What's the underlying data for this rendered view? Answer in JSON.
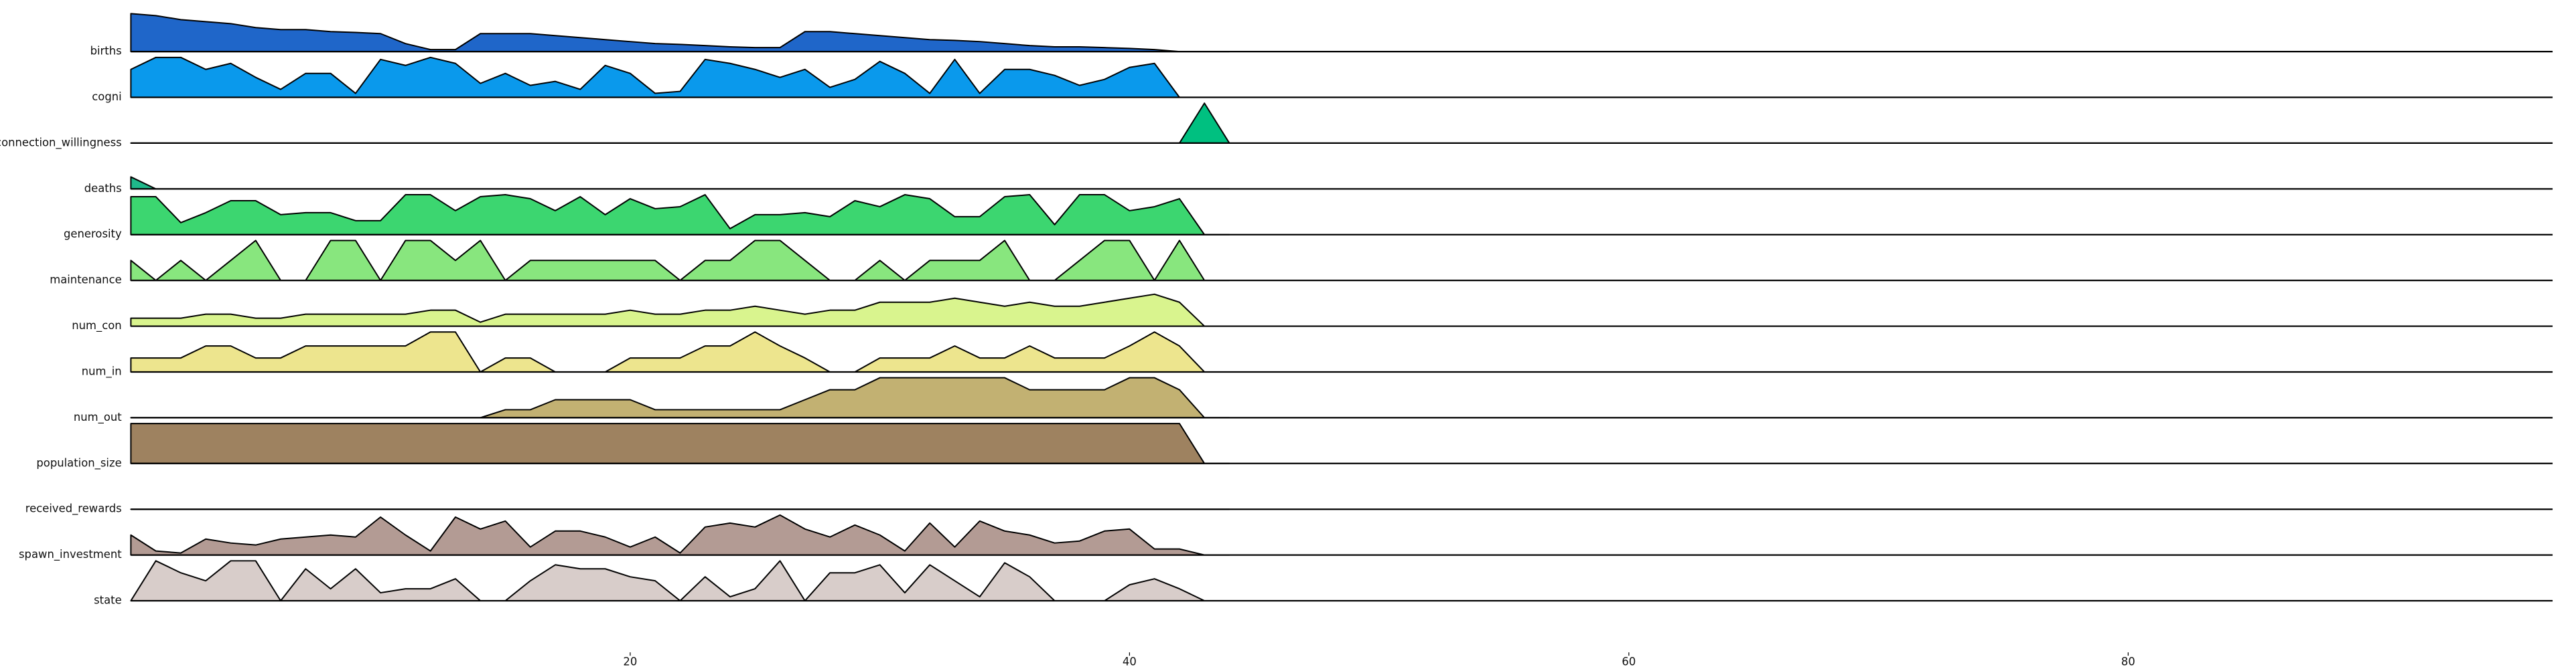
{
  "chart_data": {
    "type": "ridgeline",
    "x": [
      0,
      1,
      2,
      3,
      4,
      5,
      6,
      7,
      8,
      9,
      10,
      11,
      12,
      13,
      14,
      15,
      16,
      17,
      18,
      19,
      20,
      21,
      22,
      23,
      24,
      25,
      26,
      27,
      28,
      29,
      30,
      31,
      32,
      33,
      34,
      35,
      36,
      37,
      38,
      39,
      40,
      41,
      42,
      43,
      44
    ],
    "xlim": [
      0,
      97
    ],
    "xticks": [
      20,
      40,
      60,
      80
    ],
    "ylim": [
      0,
      1
    ],
    "series": [
      {
        "name": "births",
        "color": "#1f66c9",
        "values": [
          0.95,
          0.9,
          0.8,
          0.75,
          0.7,
          0.6,
          0.55,
          0.55,
          0.5,
          0.48,
          0.45,
          0.2,
          0.05,
          0.05,
          0.45,
          0.45,
          0.45,
          0.4,
          0.35,
          0.3,
          0.25,
          0.2,
          0.18,
          0.15,
          0.12,
          0.1,
          0.1,
          0.5,
          0.5,
          0.45,
          0.4,
          0.35,
          0.3,
          0.28,
          0.25,
          0.2,
          0.15,
          0.12,
          0.12,
          0.1,
          0.08,
          0.05,
          0,
          0,
          0
        ]
      },
      {
        "name": "cogni",
        "color": "#0a99ec",
        "values": [
          0.7,
          1,
          1,
          0.7,
          0.85,
          0.5,
          0.2,
          0.6,
          0.6,
          0.1,
          0.95,
          0.8,
          1,
          0.85,
          0.35,
          0.6,
          0.3,
          0.4,
          0.2,
          0.8,
          0.6,
          0.1,
          0.15,
          0.95,
          0.85,
          0.7,
          0.5,
          0.7,
          0.25,
          0.45,
          0.9,
          0.6,
          0.1,
          0.95,
          0.1,
          0.7,
          0.7,
          0.55,
          0.3,
          0.45,
          0.75,
          0.85,
          0,
          0,
          0
        ]
      },
      {
        "name": "connection_willingness",
        "color": "#00c080",
        "values": [
          0,
          0,
          0,
          0,
          0,
          0,
          0,
          0,
          0,
          0,
          0,
          0,
          0,
          0,
          0,
          0,
          0,
          0,
          0,
          0,
          0,
          0,
          0,
          0,
          0,
          0,
          0,
          0,
          0,
          0,
          0,
          0,
          0,
          0,
          0,
          0,
          0,
          0,
          0,
          0,
          0,
          0,
          0,
          1,
          0
        ]
      },
      {
        "name": "deaths",
        "color": "#1fb88a",
        "values": [
          0.3,
          0,
          0,
          0,
          0,
          0,
          0,
          0,
          0,
          0,
          0,
          0,
          0,
          0,
          0,
          0,
          0,
          0,
          0,
          0,
          0,
          0,
          0,
          0,
          0,
          0,
          0,
          0,
          0,
          0,
          0,
          0,
          0,
          0,
          0,
          0,
          0,
          0,
          0,
          0,
          0,
          0,
          0,
          0,
          0
        ]
      },
      {
        "name": "generosity",
        "color": "#3cd670",
        "values": [
          0.95,
          0.95,
          0.3,
          0.55,
          0.85,
          0.85,
          0.5,
          0.55,
          0.55,
          0.35,
          0.35,
          1,
          1,
          0.6,
          0.95,
          1,
          0.9,
          0.6,
          0.95,
          0.5,
          0.9,
          0.65,
          0.7,
          1,
          0.15,
          0.5,
          0.5,
          0.55,
          0.45,
          0.85,
          0.7,
          1,
          0.9,
          0.45,
          0.45,
          0.95,
          1,
          0.25,
          1,
          1,
          0.6,
          0.7,
          0.9,
          0,
          0
        ]
      },
      {
        "name": "maintenance",
        "color": "#88e67e",
        "values": [
          0.5,
          0,
          0.5,
          0,
          0.5,
          1,
          0,
          0,
          1,
          1,
          0,
          1,
          1,
          0.5,
          1,
          0,
          0.5,
          0.5,
          0.5,
          0.5,
          0.5,
          0.5,
          0,
          0.5,
          0.5,
          1,
          1,
          0.5,
          0,
          0,
          0.5,
          0,
          0.5,
          0.5,
          0.5,
          1,
          0,
          0,
          0.5,
          1,
          1,
          0,
          1,
          0,
          0
        ]
      },
      {
        "name": "num_con",
        "color": "#d9f48e",
        "values": [
          0.2,
          0.2,
          0.2,
          0.3,
          0.3,
          0.2,
          0.2,
          0.3,
          0.3,
          0.3,
          0.3,
          0.3,
          0.4,
          0.4,
          0.1,
          0.3,
          0.3,
          0.3,
          0.3,
          0.3,
          0.4,
          0.3,
          0.3,
          0.4,
          0.4,
          0.5,
          0.4,
          0.3,
          0.4,
          0.4,
          0.6,
          0.6,
          0.6,
          0.7,
          0.6,
          0.5,
          0.6,
          0.5,
          0.5,
          0.6,
          0.7,
          0.8,
          0.6,
          0,
          0
        ]
      },
      {
        "name": "num_in",
        "color": "#ede58e",
        "values": [
          0.35,
          0.35,
          0.35,
          0.65,
          0.65,
          0.35,
          0.35,
          0.65,
          0.65,
          0.65,
          0.65,
          0.65,
          1,
          1,
          0,
          0.35,
          0.35,
          0,
          0,
          0,
          0.35,
          0.35,
          0.35,
          0.65,
          0.65,
          1,
          0.65,
          0.35,
          0,
          0,
          0.35,
          0.35,
          0.35,
          0.65,
          0.35,
          0.35,
          0.65,
          0.35,
          0.35,
          0.35,
          0.65,
          1,
          0.65,
          0,
          0
        ]
      },
      {
        "name": "num_out",
        "color": "#c2b172",
        "values": [
          0,
          0,
          0,
          0,
          0,
          0,
          0,
          0,
          0,
          0,
          0,
          0,
          0,
          0,
          0,
          0.2,
          0.2,
          0.45,
          0.45,
          0.45,
          0.45,
          0.2,
          0.2,
          0.2,
          0.2,
          0.2,
          0.2,
          0.45,
          0.7,
          0.7,
          1,
          1,
          1,
          1,
          1,
          1,
          0.7,
          0.7,
          0.7,
          0.7,
          1,
          1,
          0.7,
          0,
          0
        ]
      },
      {
        "name": "population_size",
        "color": "#9e8260",
        "values": [
          1,
          1,
          1,
          1,
          1,
          1,
          1,
          1,
          1,
          1,
          1,
          1,
          1,
          1,
          1,
          1,
          1,
          1,
          1,
          1,
          1,
          1,
          1,
          1,
          1,
          1,
          1,
          1,
          1,
          1,
          1,
          1,
          1,
          1,
          1,
          1,
          1,
          1,
          1,
          1,
          1,
          1,
          1,
          0,
          0
        ]
      },
      {
        "name": "received_rewards",
        "color": "#8c7460",
        "values": [
          0,
          0,
          0,
          0,
          0,
          0,
          0,
          0,
          0,
          0,
          0,
          0,
          0,
          0,
          0,
          0,
          0,
          0,
          0,
          0,
          0,
          0,
          0,
          0,
          0,
          0,
          0,
          0,
          0,
          0,
          0,
          0,
          0,
          0,
          0,
          0,
          0,
          0,
          0,
          0,
          0,
          0,
          0,
          0,
          0
        ]
      },
      {
        "name": "spawn_investment",
        "color": "#b39b94",
        "values": [
          0.5,
          0.1,
          0.05,
          0.4,
          0.3,
          0.25,
          0.4,
          0.45,
          0.5,
          0.45,
          0.95,
          0.5,
          0.1,
          0.95,
          0.65,
          0.85,
          0.2,
          0.6,
          0.6,
          0.45,
          0.2,
          0.45,
          0.05,
          0.7,
          0.8,
          0.7,
          1,
          0.65,
          0.45,
          0.75,
          0.5,
          0.1,
          0.8,
          0.2,
          0.85,
          0.6,
          0.5,
          0.3,
          0.35,
          0.6,
          0.65,
          0.15,
          0.15,
          0,
          0
        ]
      },
      {
        "name": "state",
        "color": "#d8cdca",
        "values": [
          0,
          1,
          0.7,
          0.5,
          1,
          1,
          0,
          0.8,
          0.3,
          0.8,
          0.2,
          0.3,
          0.3,
          0.55,
          0,
          0,
          0.5,
          0.9,
          0.8,
          0.8,
          0.6,
          0.5,
          0,
          0.6,
          0.1,
          0.3,
          1,
          0,
          0.7,
          0.7,
          0.9,
          0.2,
          0.9,
          0.5,
          0.1,
          0.95,
          0.6,
          0,
          0,
          0,
          0.4,
          0.55,
          0.3,
          0,
          0
        ]
      }
    ]
  }
}
